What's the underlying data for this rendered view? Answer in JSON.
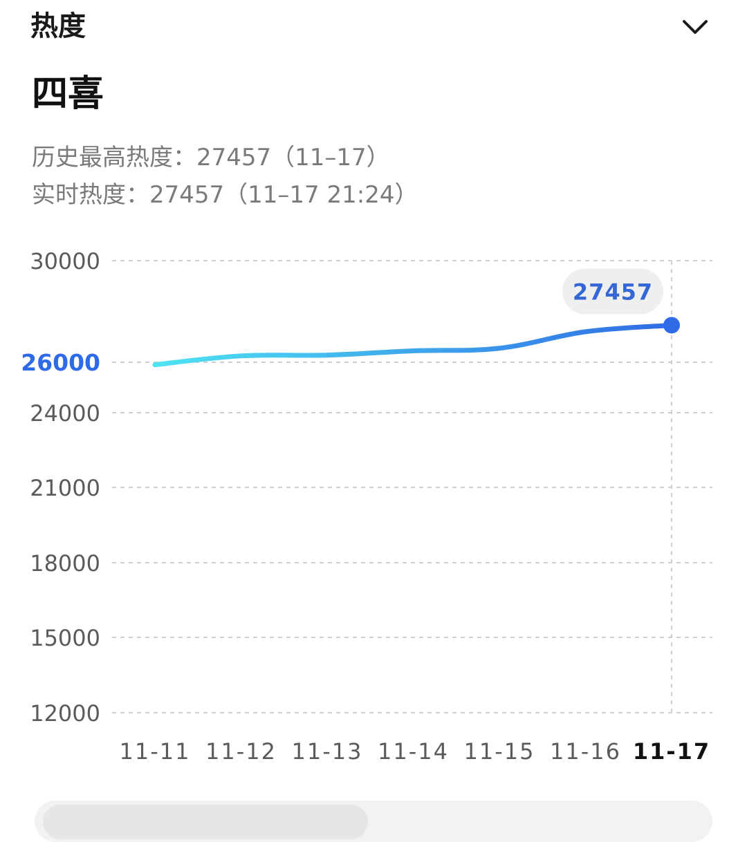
{
  "header": {
    "title": "热度",
    "collapse_icon": "chevron-down-icon"
  },
  "topic": {
    "name": "四喜"
  },
  "stats": {
    "peak_line": "历史最高热度：27457（11–17）",
    "realtime_line": "实时热度：27457（11–17 21:24）"
  },
  "colors": {
    "line_start": "#4fe3f2",
    "line_end": "#2f6be6",
    "highlight_tick": "#2f6be6",
    "bubble_bg": "#efefef",
    "bubble_text": "#3566d6",
    "grid": "#cfcfcf",
    "tick": "#5a5a5a"
  },
  "chart_data": {
    "type": "line",
    "title": "",
    "xlabel": "",
    "ylabel": "",
    "categories": [
      "11-11",
      "11-12",
      "11-13",
      "11-14",
      "11-15",
      "11-16",
      "11-17"
    ],
    "values": [
      25900,
      26250,
      26280,
      26450,
      26550,
      27200,
      27457
    ],
    "y_ticks": [
      "30000",
      "26000",
      "24000",
      "21000",
      "18000",
      "15000",
      "12000"
    ],
    "highlight": {
      "category": "11-17",
      "value": 27457,
      "label": "27457",
      "y_tick": "26000"
    },
    "grid": true,
    "legend": "none"
  }
}
